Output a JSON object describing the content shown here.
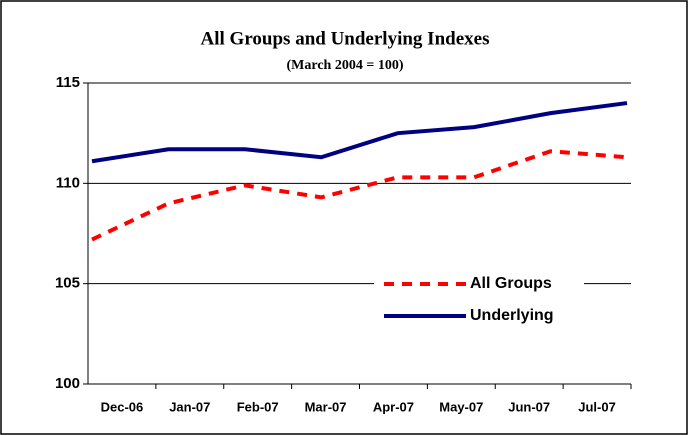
{
  "chart_data": {
    "type": "line",
    "title": "All Groups and Underlying Indexes",
    "subtitle": "(March 2004 = 100)",
    "categories": [
      "Dec-06",
      "Jan-07",
      "Feb-07",
      "Mar-07",
      "Apr-07",
      "May-07",
      "Jun-07",
      "Jul-07"
    ],
    "series": [
      {
        "name": "All Groups",
        "color": "#ff0000",
        "dashed": true,
        "values": [
          107.2,
          109.0,
          109.9,
          109.3,
          110.3,
          110.3,
          111.6,
          111.3
        ]
      },
      {
        "name": "Underlying",
        "color": "#000080",
        "dashed": false,
        "values": [
          111.1,
          111.7,
          111.7,
          111.3,
          112.5,
          112.8,
          113.5,
          114.0
        ]
      }
    ],
    "ylim": [
      100,
      115
    ],
    "yticks": [
      100,
      105,
      110,
      115
    ],
    "grid": true,
    "legend": "right"
  }
}
